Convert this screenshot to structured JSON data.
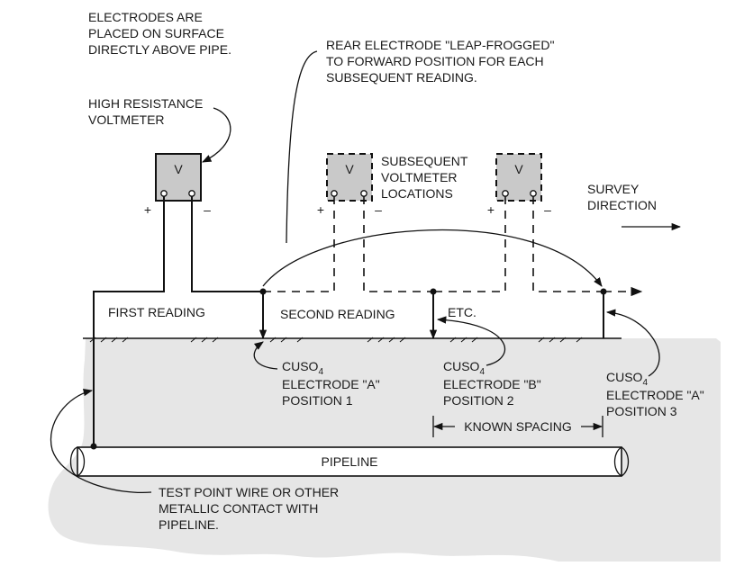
{
  "notes": {
    "electrodes_placement": [
      "ELECTRODES ARE",
      "PLACED ON SURFACE",
      "DIRECTLY ABOVE PIPE."
    ],
    "leapfrog": [
      "REAR ELECTRODE \"LEAP-FROGGED\"",
      "TO FORWARD POSITION FOR EACH",
      "SUBSEQUENT READING."
    ],
    "high_resistance": [
      "HIGH RESISTANCE",
      "VOLTMETER"
    ],
    "subsequent_locations": [
      "SUBSEQUENT",
      "VOLTMETER",
      "LOCATIONS"
    ],
    "survey_direction": [
      "SURVEY",
      "DIRECTION"
    ],
    "test_point": [
      "TEST POINT WIRE OR OTHER",
      "METALLIC CONTACT WITH",
      "PIPELINE."
    ]
  },
  "meters": {
    "symbol": "V",
    "plus": "+",
    "minus": "–"
  },
  "readings": {
    "first": "FIRST READING",
    "second": "SECOND READING",
    "etc": "ETC."
  },
  "electrodes": [
    {
      "label": "CUSO",
      "sub": "4",
      "line2": "ELECTRODE \"A\"",
      "line3": "POSITION 1"
    },
    {
      "label": "CUSO",
      "sub": "4",
      "line2": "ELECTRODE \"B\"",
      "line3": "POSITION 2"
    },
    {
      "label": "CUSO",
      "sub": "4",
      "line2": "ELECTRODE \"A\"",
      "line3": "POSITION 3"
    }
  ],
  "known_spacing": "KNOWN SPACING",
  "pipeline": "PIPELINE",
  "colors": {
    "soil": "#e6e6e6",
    "meter_fill": "#c9c9c9",
    "line": "#111111"
  }
}
